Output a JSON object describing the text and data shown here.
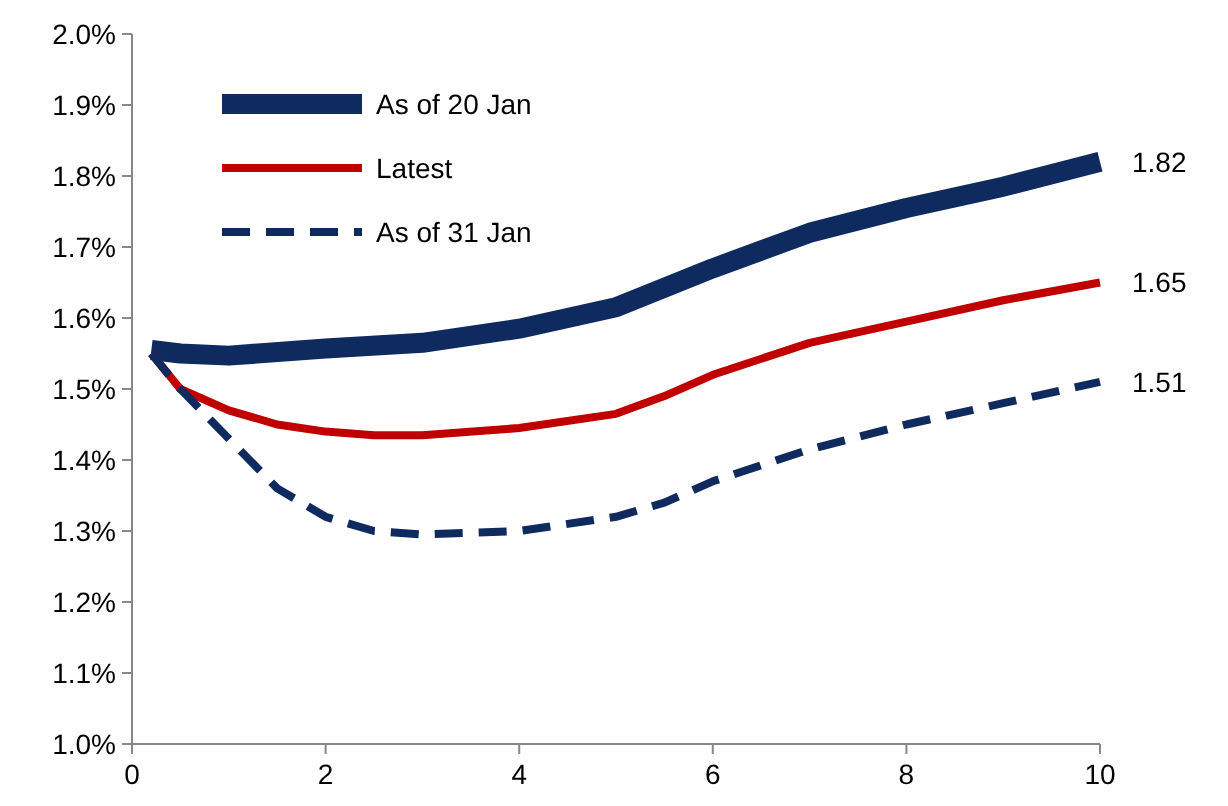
{
  "chart_data": {
    "type": "line",
    "legend": "top left",
    "grid": false,
    "marker": "none",
    "xlim": [
      0,
      10
    ],
    "xticks": [
      0,
      2,
      4,
      6,
      8,
      10
    ],
    "ylim": [
      1.0,
      2.0
    ],
    "yticks": [
      {
        "value": 1.0,
        "label": "1.0%"
      },
      {
        "value": 1.1,
        "label": "1.1%"
      },
      {
        "value": 1.2,
        "label": "1.2%"
      },
      {
        "value": 1.3,
        "label": "1.3%"
      },
      {
        "value": 1.4,
        "label": "1.4%"
      },
      {
        "value": 1.5,
        "label": "1.5%"
      },
      {
        "value": 1.6,
        "label": "1.6%"
      },
      {
        "value": 1.7,
        "label": "1.7%"
      },
      {
        "value": 1.8,
        "label": "1.8%"
      },
      {
        "value": 1.9,
        "label": "1.9%"
      },
      {
        "value": 2.0,
        "label": "2.0%"
      }
    ],
    "series": [
      {
        "name": "As of 20 Jan",
        "color": "#0f2a5f",
        "line_style": "solid",
        "x": [
          0.2,
          0.5,
          1,
          2,
          3,
          4,
          5,
          6,
          7,
          8,
          9,
          10
        ],
        "values": [
          1.555,
          1.55,
          1.547,
          1.557,
          1.565,
          1.585,
          1.615,
          1.67,
          1.72,
          1.755,
          1.785,
          1.82
        ],
        "value_labels": [
          null,
          null,
          null,
          null,
          null,
          null,
          null,
          null,
          null,
          null,
          null,
          "1.82"
        ]
      },
      {
        "name": "Latest",
        "color": "#c00000",
        "line_style": "solid",
        "x": [
          0.2,
          0.5,
          1,
          1.5,
          2,
          2.5,
          3,
          4,
          5,
          5.5,
          6,
          7,
          8,
          9,
          10
        ],
        "values": [
          1.55,
          1.5,
          1.47,
          1.45,
          1.44,
          1.435,
          1.435,
          1.445,
          1.465,
          1.49,
          1.52,
          1.565,
          1.595,
          1.625,
          1.65
        ],
        "value_labels": [
          null,
          null,
          null,
          null,
          null,
          null,
          null,
          null,
          null,
          null,
          null,
          null,
          null,
          null,
          "1.65"
        ]
      },
      {
        "name": "As of 31 Jan",
        "color": "#0f2a5f",
        "line_style": "dashed",
        "x": [
          0.2,
          0.5,
          1,
          1.5,
          2,
          2.5,
          3,
          4,
          5,
          5.5,
          6,
          7,
          8,
          9,
          10
        ],
        "values": [
          1.55,
          1.5,
          1.43,
          1.36,
          1.32,
          1.3,
          1.295,
          1.3,
          1.32,
          1.34,
          1.37,
          1.415,
          1.45,
          1.48,
          1.51
        ],
        "value_labels": [
          null,
          null,
          null,
          null,
          null,
          null,
          null,
          null,
          null,
          null,
          null,
          null,
          null,
          null,
          "1.51"
        ]
      }
    ]
  }
}
